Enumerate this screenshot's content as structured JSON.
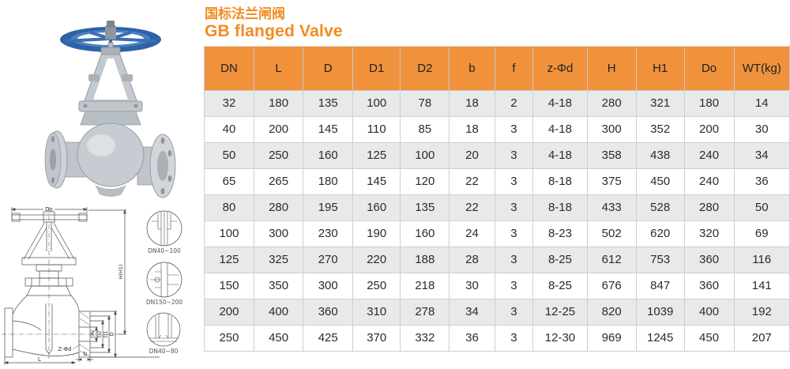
{
  "title": {
    "zh": "国标法兰闸阀",
    "en": "GB flanged Valve"
  },
  "colors": {
    "title_orange": "#f28b1f",
    "header_orange": "#f0913c",
    "row_stripe": "#e9e9e9",
    "grid_line": "#cfcfcf",
    "handwheel_blue": "#2e62a8",
    "valve_body_gray": "#c6ccd1",
    "drawing_line": "#4d4d4d"
  },
  "table": {
    "columns": [
      "DN",
      "L",
      "D",
      "D1",
      "D2",
      "b",
      "f",
      "z-Φd",
      "H",
      "H1",
      "Do",
      "WT(kg)"
    ],
    "rows": [
      [
        "32",
        "180",
        "135",
        "100",
        "78",
        "18",
        "2",
        "4-18",
        "280",
        "321",
        "180",
        "14"
      ],
      [
        "40",
        "200",
        "145",
        "110",
        "85",
        "18",
        "3",
        "4-18",
        "300",
        "352",
        "200",
        "30"
      ],
      [
        "50",
        "250",
        "160",
        "125",
        "100",
        "20",
        "3",
        "4-18",
        "358",
        "438",
        "240",
        "34"
      ],
      [
        "65",
        "265",
        "180",
        "145",
        "120",
        "22",
        "3",
        "8-18",
        "375",
        "450",
        "240",
        "36"
      ],
      [
        "80",
        "280",
        "195",
        "160",
        "135",
        "22",
        "3",
        "8-18",
        "433",
        "528",
        "280",
        "50"
      ],
      [
        "100",
        "300",
        "230",
        "190",
        "160",
        "24",
        "3",
        "8-23",
        "502",
        "620",
        "320",
        "69"
      ],
      [
        "125",
        "325",
        "270",
        "220",
        "188",
        "28",
        "3",
        "8-25",
        "612",
        "753",
        "360",
        "116"
      ],
      [
        "150",
        "350",
        "300",
        "250",
        "218",
        "30",
        "3",
        "8-25",
        "676",
        "847",
        "360",
        "141"
      ],
      [
        "200",
        "400",
        "360",
        "310",
        "278",
        "34",
        "3",
        "12-25",
        "820",
        "1039",
        "400",
        "192"
      ],
      [
        "250",
        "450",
        "425",
        "370",
        "332",
        "36",
        "3",
        "12-30",
        "969",
        "1245",
        "450",
        "207"
      ]
    ]
  },
  "drawing": {
    "dim_labels": {
      "handwheel_dia": "Do",
      "height": "H(H1)",
      "bore": "DN",
      "raised_face": "D2",
      "bolt_circle": "D1",
      "flange_od": "D",
      "bolt_holes": "Z-Φd",
      "length": "L",
      "flange_thickness": "b"
    },
    "details": [
      {
        "caption": "DN40~100"
      },
      {
        "caption": "DN150~200"
      },
      {
        "caption": "DN40~80"
      }
    ]
  }
}
